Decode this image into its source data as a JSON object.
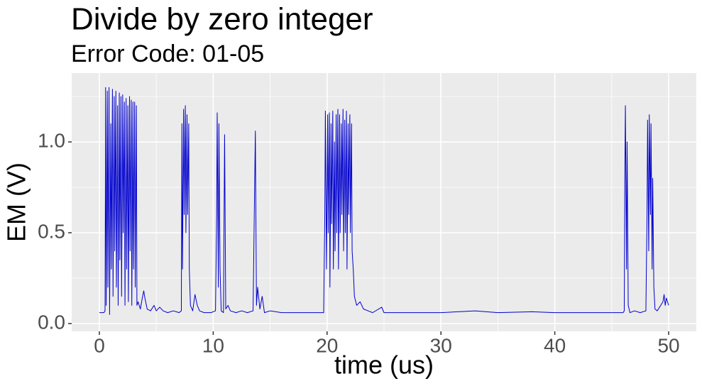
{
  "chart_data": {
    "type": "line",
    "title": "Divide by zero integer",
    "subtitle": "Error Code: 01-05",
    "x_label": "time (us)",
    "y_label": "EM (V)",
    "xlim": [
      -2.43,
      52.43
    ],
    "ylim": [
      -0.043,
      1.379
    ],
    "xticks": [
      0,
      10,
      20,
      30,
      40,
      50
    ],
    "minor_xticks": [
      5,
      15,
      25,
      35,
      45
    ],
    "yticks": [
      {
        "value": 0,
        "label": "0.0"
      },
      {
        "value": 0.5,
        "label": "0.5"
      },
      {
        "value": 1,
        "label": "1.0"
      }
    ],
    "minor_yticks": [
      0.25,
      0.75,
      1.25
    ],
    "grid": true,
    "color": "#0000cd",
    "x": [
      0,
      0.4,
      0.5,
      0.55,
      0.6,
      0.7,
      0.75,
      0.85,
      0.9,
      1.0,
      1.05,
      1.15,
      1.2,
      1.3,
      1.35,
      1.45,
      1.5,
      1.6,
      1.65,
      1.75,
      1.8,
      1.9,
      1.95,
      2.05,
      2.1,
      2.2,
      2.25,
      2.35,
      2.4,
      2.5,
      2.55,
      2.65,
      2.7,
      2.8,
      2.85,
      2.95,
      3.0,
      3.1,
      3.15,
      3.25,
      3.3,
      3.4,
      3.6,
      3.8,
      3.9,
      4.0,
      4.2,
      4.5,
      4.8,
      5.0,
      5.3,
      5.6,
      6.0,
      6.5,
      7.0,
      7.2,
      7.25,
      7.3,
      7.4,
      7.45,
      7.55,
      7.6,
      7.7,
      7.75,
      7.85,
      7.9,
      8.0,
      8.2,
      8.4,
      8.6,
      8.8,
      9.2,
      9.8,
      10.2,
      10.3,
      10.35,
      10.45,
      10.5,
      10.6,
      10.7,
      10.9,
      11.0,
      11.1,
      11.3,
      11.5,
      12.0,
      12.5,
      13.0,
      13.5,
      13.7,
      13.8,
      13.9,
      14.1,
      14.3,
      14.5,
      15.0,
      16,
      17,
      18,
      19,
      19.7,
      19.8,
      19.85,
      19.95,
      20.05,
      20.1,
      20.2,
      20.25,
      20.35,
      20.4,
      20.5,
      20.55,
      20.65,
      20.7,
      20.8,
      20.85,
      20.95,
      21.0,
      21.1,
      21.15,
      21.25,
      21.3,
      21.4,
      21.45,
      21.55,
      21.6,
      21.7,
      21.75,
      21.85,
      21.9,
      22.0,
      22.05,
      22.15,
      22.2,
      22.3,
      22.4,
      22.6,
      22.9,
      23.2,
      23.6,
      24,
      24.8,
      25,
      27,
      30,
      33,
      35,
      38,
      40,
      43,
      46,
      46.1,
      46.15,
      46.2,
      46.3,
      46.35,
      46.45,
      46.6,
      47,
      47.5,
      48,
      48.1,
      48.15,
      48.25,
      48.3,
      48.4,
      48.45,
      48.55,
      48.6,
      48.7,
      48.8,
      49,
      49.3,
      49.5,
      49.6,
      49.7,
      49.8,
      50
    ],
    "values": [
      0.06,
      0.06,
      0.07,
      1.3,
      0.1,
      1.28,
      0.2,
      1.3,
      0.05,
      1.1,
      0.3,
      1.29,
      0.15,
      1.25,
      0.4,
      1.28,
      0.2,
      1.2,
      0.1,
      1.27,
      0.35,
      1.25,
      0.15,
      1.26,
      0.5,
      1.22,
      0.1,
      1.24,
      0.3,
      1.2,
      0.12,
      1.25,
      0.4,
      1.23,
      0.1,
      1.22,
      0.3,
      1.22,
      0.2,
      1.2,
      0.1,
      0.12,
      0.08,
      0.15,
      0.18,
      0.14,
      0.08,
      0.07,
      0.1,
      0.07,
      0.09,
      0.07,
      0.06,
      0.07,
      0.06,
      0.07,
      1.1,
      0.3,
      1.18,
      0.6,
      1.2,
      0.5,
      1.15,
      0.6,
      1.1,
      0.3,
      0.1,
      0.07,
      0.16,
      0.1,
      0.07,
      0.06,
      0.06,
      0.07,
      0.6,
      1.16,
      0.2,
      1.1,
      0.3,
      0.07,
      0.06,
      1.04,
      0.08,
      0.1,
      0.07,
      0.06,
      0.07,
      0.06,
      0.07,
      1.06,
      0.1,
      0.2,
      0.08,
      0.15,
      0.06,
      0.07,
      0.06,
      0.06,
      0.06,
      0.06,
      0.06,
      0.6,
      1.17,
      0.3,
      1.15,
      0.5,
      1.16,
      0.2,
      1.1,
      0.55,
      1.17,
      0.3,
      1.0,
      0.4,
      1.15,
      0.5,
      1.18,
      0.3,
      1.15,
      0.5,
      1.1,
      0.6,
      1.18,
      0.4,
      1.12,
      0.5,
      1.17,
      0.3,
      1.1,
      0.6,
      1.15,
      0.5,
      1.1,
      0.4,
      0.3,
      0.15,
      0.1,
      0.12,
      0.08,
      0.07,
      0.06,
      0.09,
      0.06,
      0.06,
      0.06,
      0.07,
      0.06,
      0.065,
      0.06,
      0.06,
      0.06,
      0.07,
      0.8,
      1.2,
      0.3,
      1.0,
      0.1,
      0.06,
      0.07,
      0.06,
      0.07,
      0.6,
      1.12,
      0.4,
      1.15,
      0.6,
      1.1,
      0.3,
      0.8,
      0.2,
      0.08,
      0.07,
      0.1,
      0.12,
      0.16,
      0.1,
      0.14,
      0.1
    ]
  }
}
